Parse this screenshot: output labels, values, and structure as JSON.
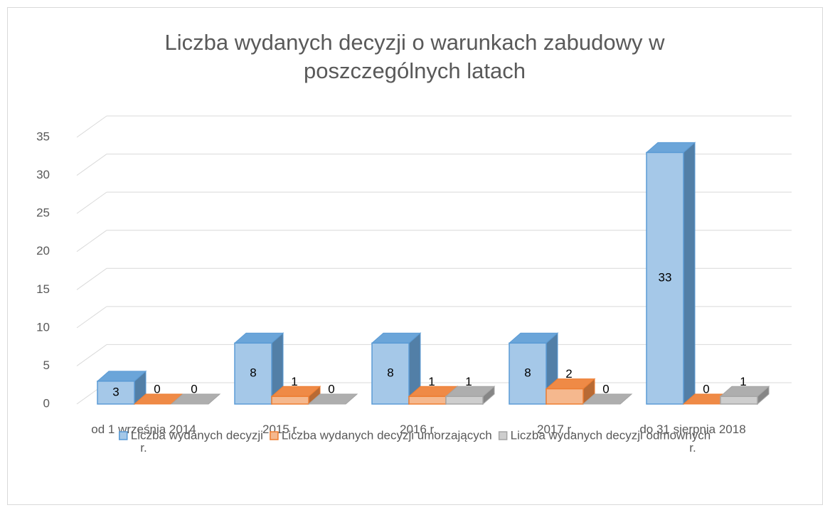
{
  "chart_data": {
    "type": "bar3d",
    "title": "Liczba wydanych decyzji o warunkach zabudowy w poszczególnych latach",
    "categories": [
      "od 1 września 2014 r.",
      "2015 r.",
      "2016 r.",
      "2017 r.",
      "do 31 sierpnia 2018 r."
    ],
    "series": [
      {
        "name": "Liczba wydanych decyzji",
        "color": "#5b9bd5",
        "values": [
          3,
          8,
          8,
          8,
          33
        ]
      },
      {
        "name": "Liczba wydanych decyzji umorzających",
        "color": "#ed7d31",
        "values": [
          0,
          1,
          1,
          2,
          0
        ]
      },
      {
        "name": "Liczba wydanych decyzji odmownych",
        "color": "#a5a5a5",
        "values": [
          0,
          0,
          1,
          0,
          1
        ]
      }
    ],
    "ylim": [
      0,
      35
    ],
    "yticks": [
      0,
      5,
      10,
      15,
      20,
      25,
      30,
      35
    ],
    "grid": true,
    "legend": "bottom"
  }
}
